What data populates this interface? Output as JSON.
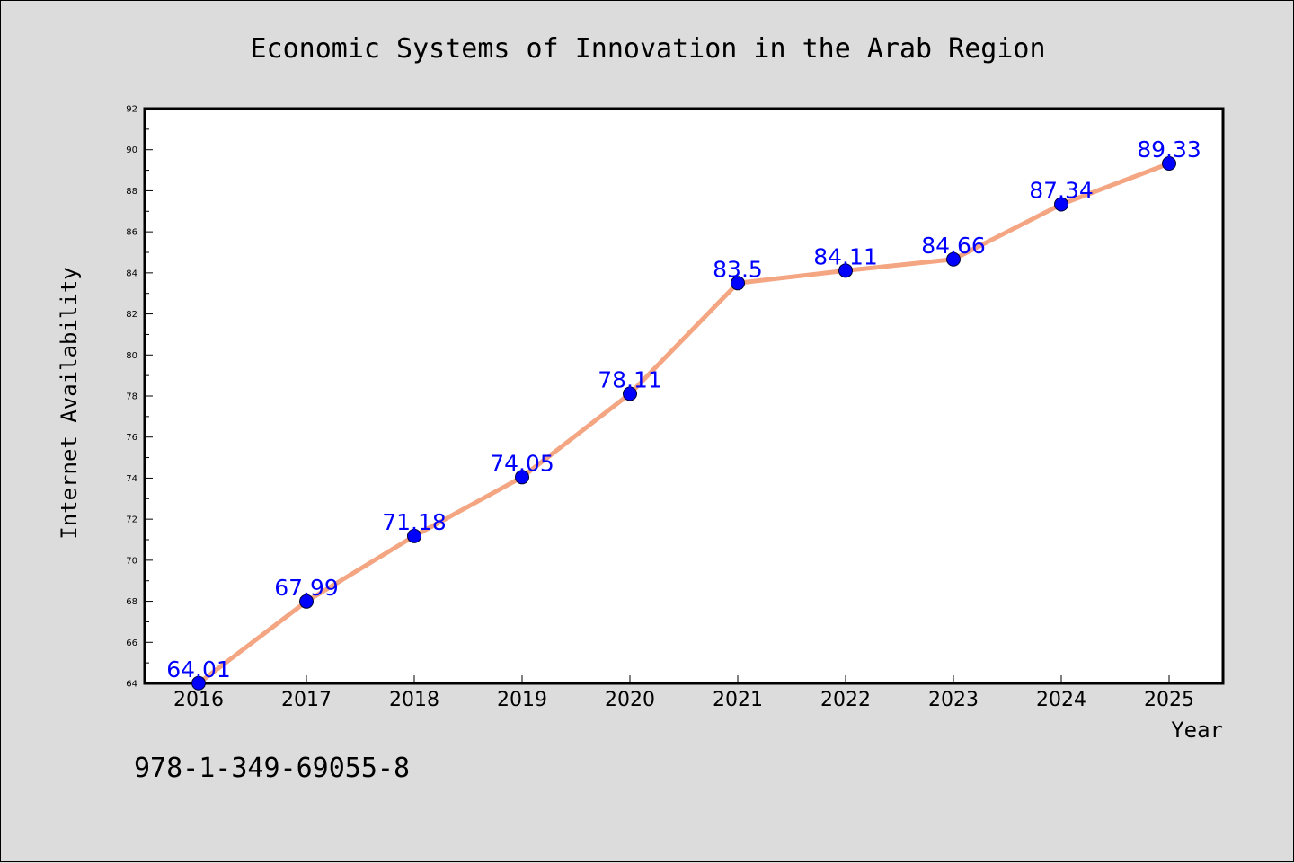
{
  "chart_data": {
    "type": "line",
    "title": "Economic Systems of Innovation in the Arab Region",
    "xlabel": "Year",
    "ylabel": "Internet Availability",
    "categories": [
      "2016",
      "2017",
      "2018",
      "2019",
      "2020",
      "2021",
      "2022",
      "2023",
      "2024",
      "2025"
    ],
    "series": [
      {
        "values": [
          64.01,
          67.99,
          71.18,
          74.05,
          78.11,
          83.5,
          84.11,
          84.66,
          87.34,
          89.33
        ],
        "color": "#f4a582",
        "marker_color": "#0000ff"
      }
    ],
    "data_labels": [
      "64.01",
      "67.99",
      "71.18",
      "74.05",
      "78.11",
      "83.5",
      "84.11",
      "84.66",
      "87.34",
      "89.33"
    ],
    "ylim": [
      64,
      92
    ],
    "yticks": [
      "64",
      "66",
      "68",
      "70",
      "72",
      "74",
      "76",
      "78",
      "80",
      "82",
      "84",
      "86",
      "88",
      "90",
      "92"
    ],
    "grid": false,
    "legend": "none",
    "data_label_color": "#0000ff"
  },
  "footer": {
    "isbn": "978-1-349-69055-8"
  }
}
